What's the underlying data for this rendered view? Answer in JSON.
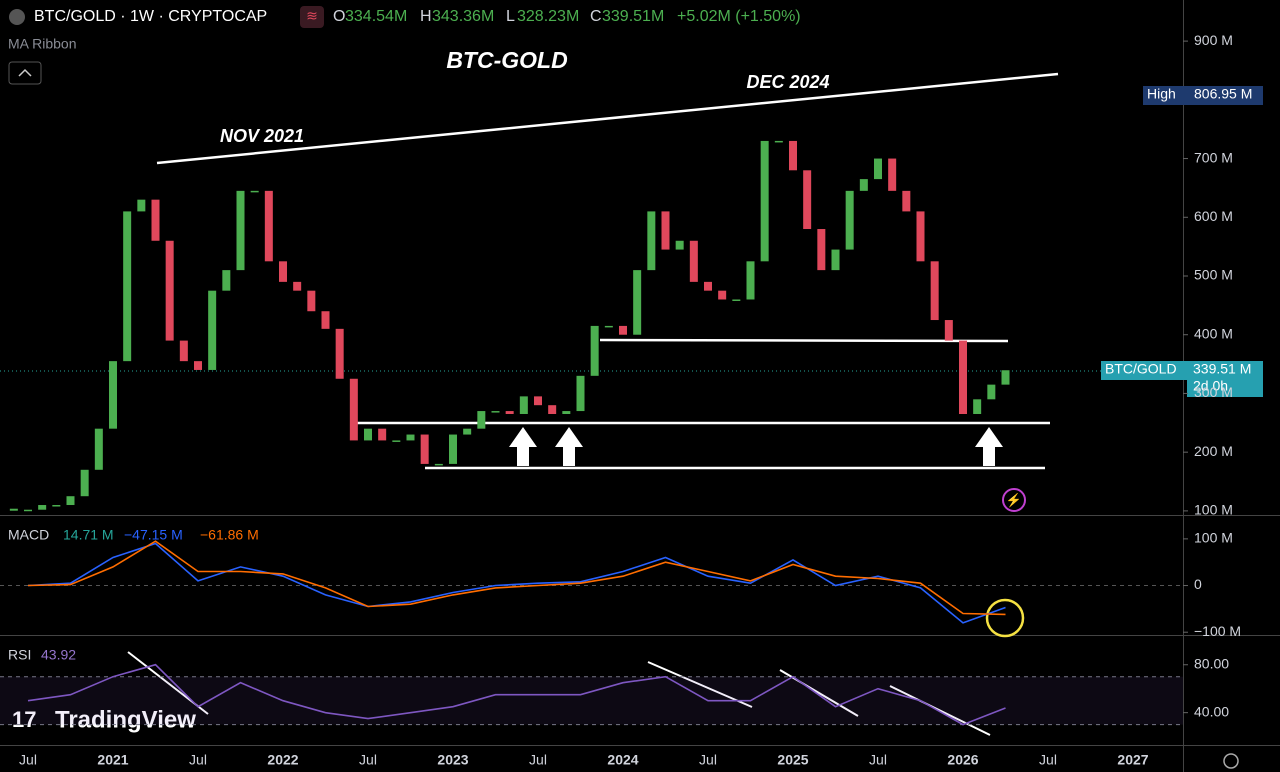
{
  "header": {
    "symbol": "BTC/GOLD · 1W · CRYPTOCAP",
    "o_label": "O",
    "o": "334.54M",
    "h_label": "H",
    "h": "343.36M",
    "l_label": "L",
    "l": "328.23M",
    "c_label": "C",
    "c": "339.51M",
    "change": "+5.02M (+1.50%)",
    "indicator": "MA Ribbon"
  },
  "price_labels": {
    "high_label": "High",
    "high": "806.95 M",
    "last": "339.51 M",
    "countdown": "2d 0h"
  },
  "watermark": "TradingView",
  "chart_data": [
    {
      "type": "candle",
      "title": "BTC-GOLD",
      "annotations": [
        "NOV 2021",
        "DEC 2024"
      ],
      "x": [
        "2020-06",
        "2020-07",
        "2020-08",
        "2020-09",
        "2020-10",
        "2020-11",
        "2020-12",
        "2021-01",
        "2021-02",
        "2021-03",
        "2021-04",
        "2021-05",
        "2021-06",
        "2021-07",
        "2021-08",
        "2021-09",
        "2021-10",
        "2021-11",
        "2021-12",
        "2022-01",
        "2022-02",
        "2022-03",
        "2022-04",
        "2022-05",
        "2022-06",
        "2022-07",
        "2022-08",
        "2022-09",
        "2022-10",
        "2022-11",
        "2022-12",
        "2023-01",
        "2023-02",
        "2023-03",
        "2023-04",
        "2023-05",
        "2023-06",
        "2023-07",
        "2023-08",
        "2023-09",
        "2023-10",
        "2023-11",
        "2023-12",
        "2024-01",
        "2024-02",
        "2024-03",
        "2024-04",
        "2024-05",
        "2024-06",
        "2024-07",
        "2024-08",
        "2024-09",
        "2024-10",
        "2024-11",
        "2024-12",
        "2025-01",
        "2025-02",
        "2025-03",
        "2025-04",
        "2025-05",
        "2025-06",
        "2025-07",
        "2025-08",
        "2025-09",
        "2025-10",
        "2025-11",
        "2025-12",
        "2026-01",
        "2026-02",
        "2026-03",
        "2026-04"
      ],
      "series": [
        {
          "name": "BTC/GOLD",
          "up_color": "#4caf50",
          "down_color": "#e0485c",
          "values": [
            102,
            102,
            110,
            110,
            125,
            170,
            240,
            355,
            610,
            630,
            560,
            390,
            355,
            340,
            475,
            510,
            645,
            645,
            525,
            490,
            475,
            440,
            410,
            325,
            220,
            240,
            220,
            220,
            230,
            180,
            180,
            230,
            240,
            270,
            270,
            265,
            295,
            280,
            265,
            270,
            330,
            415,
            415,
            400,
            510,
            610,
            545,
            560,
            490,
            475,
            460,
            460,
            525,
            730,
            730,
            680,
            580,
            510,
            545,
            645,
            665,
            700,
            645,
            610,
            525,
            425,
            390,
            265,
            290,
            315,
            339.51
          ]
        }
      ],
      "ylim": [
        93,
        970
      ],
      "yticks": [
        {
          "value": 100,
          "label": "100 M"
        },
        {
          "value": 200,
          "label": "200 M"
        },
        {
          "value": 300,
          "label": "300 M"
        },
        {
          "value": 400,
          "label": "400 M"
        },
        {
          "value": 500,
          "label": "500 M"
        },
        {
          "value": 600,
          "label": "600 M"
        },
        {
          "value": 700,
          "label": "700 M"
        },
        {
          "value": 900,
          "label": "900 M"
        }
      ]
    },
    {
      "type": "line",
      "title": "MACD",
      "readouts": [
        "14.71 M",
        "−47.15 M",
        "−61.86 M"
      ],
      "x": [
        "2020-07",
        "2020-10",
        "2021-01",
        "2021-04",
        "2021-07",
        "2021-10",
        "2022-01",
        "2022-04",
        "2022-07",
        "2022-10",
        "2023-01",
        "2023-04",
        "2023-07",
        "2023-10",
        "2024-01",
        "2024-04",
        "2024-07",
        "2024-10",
        "2025-01",
        "2025-04",
        "2025-07",
        "2025-10",
        "2026-01",
        "2026-04"
      ],
      "series": [
        {
          "color": "#2962ff",
          "values": [
            0,
            5,
            60,
            90,
            10,
            40,
            20,
            -20,
            -45,
            -35,
            -15,
            0,
            5,
            8,
            30,
            60,
            20,
            5,
            55,
            0,
            20,
            -5,
            -80,
            -47.15
          ]
        },
        {
          "color": "#ff6d00",
          "values": [
            0,
            2,
            40,
            95,
            30,
            30,
            25,
            -5,
            -45,
            -40,
            -20,
            -5,
            0,
            5,
            20,
            50,
            30,
            10,
            45,
            20,
            15,
            5,
            -60,
            -61.86
          ]
        }
      ],
      "ylim": [
        -106,
        149
      ],
      "yticks": [
        {
          "value": 100,
          "label": "100 M"
        },
        0,
        {
          "value": -100,
          "label": "−100 M"
        }
      ]
    },
    {
      "type": "line",
      "title": "RSI",
      "readouts": [
        "43.92"
      ],
      "x": [
        "2020-07",
        "2020-10",
        "2021-01",
        "2021-04",
        "2021-07",
        "2021-10",
        "2022-01",
        "2022-04",
        "2022-07",
        "2022-10",
        "2023-01",
        "2023-04",
        "2023-07",
        "2023-10",
        "2024-01",
        "2024-04",
        "2024-07",
        "2024-10",
        "2025-01",
        "2025-04",
        "2025-07",
        "2025-10",
        "2026-01",
        "2026-04"
      ],
      "series": [
        {
          "color": "#7e57c2",
          "values": [
            50,
            55,
            70,
            80,
            45,
            65,
            50,
            40,
            35,
            40,
            45,
            55,
            55,
            55,
            65,
            70,
            50,
            50,
            70,
            45,
            60,
            50,
            30,
            43.92
          ]
        }
      ],
      "bands": [
        70,
        30
      ],
      "ylim": [
        13,
        104
      ],
      "yticks": [
        {
          "value": 80,
          "label": "80.00"
        },
        {
          "value": 40,
          "label": "40.00"
        }
      ],
      "xticks": [
        {
          "value": "2020-07",
          "label": "Jul"
        },
        {
          "value": "2021-01",
          "label": "2021"
        },
        {
          "value": "2021-07",
          "label": "Jul"
        },
        {
          "value": "2022-01",
          "label": "2022"
        },
        {
          "value": "2022-07",
          "label": "Jul"
        },
        {
          "value": "2023-01",
          "label": "2023"
        },
        {
          "value": "2023-07",
          "label": "Jul"
        },
        {
          "value": "2024-01",
          "label": "2024"
        },
        {
          "value": "2024-07",
          "label": "Jul"
        },
        {
          "value": "2025-01",
          "label": "2025"
        },
        {
          "value": "2025-07",
          "label": "Jul"
        },
        {
          "value": "2026-01",
          "label": "2026"
        },
        {
          "value": "2026-07",
          "label": "Jul"
        },
        {
          "value": "2027-01",
          "label": "2027"
        }
      ]
    }
  ]
}
